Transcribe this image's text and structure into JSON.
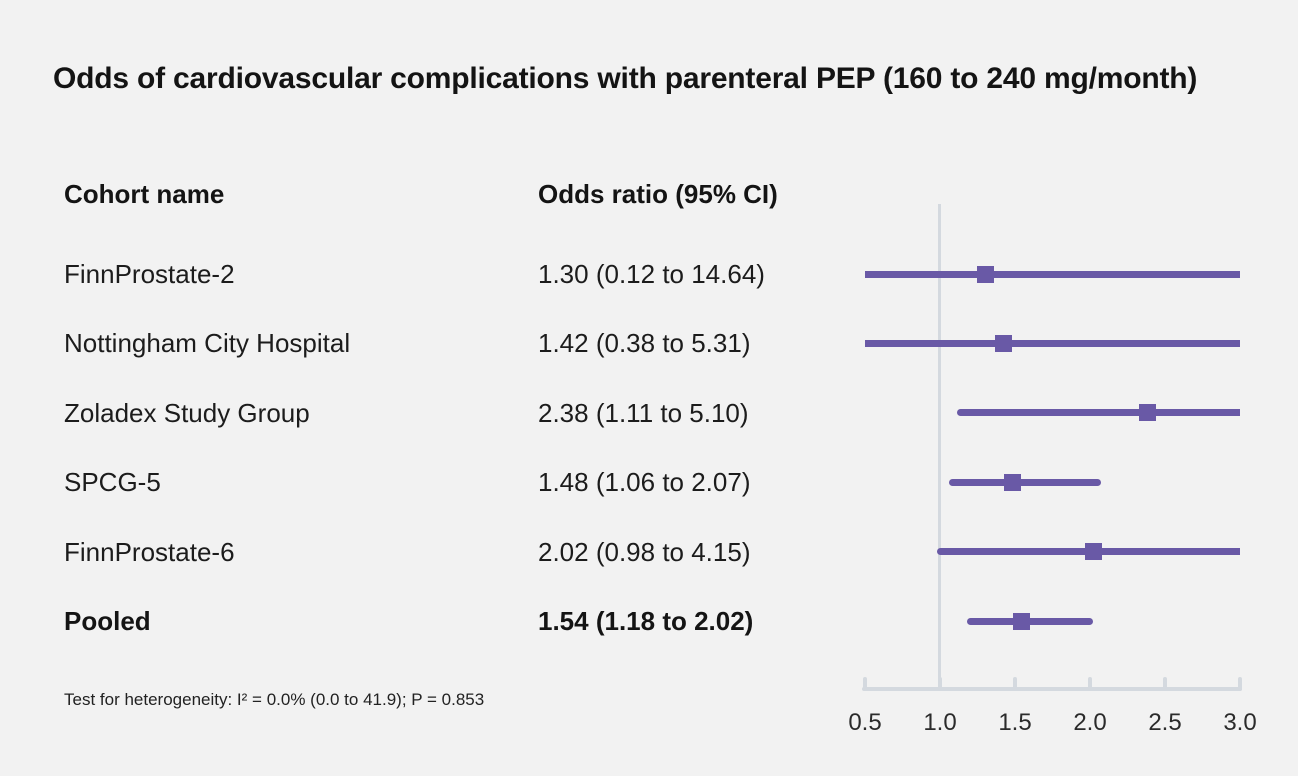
{
  "title": "Odds of cardiovascular complications with parenteral PEP (160 to 240 mg/month)",
  "table": {
    "cohort_header": "Cohort name",
    "or_header": "Odds ratio (95% CI)"
  },
  "footnote": "Test for heterogeneity: I² = 0.0% (0.0 to 41.9); P = 0.853",
  "colors": {
    "marker": "#6959a6",
    "axis_line": "#d4d9df",
    "background": "#f2f2f2",
    "text": "#1a1a1a"
  },
  "chart_data": {
    "type": "scatter",
    "chart_kind": "forest_plot",
    "title": "Odds of cardiovascular complications with parenteral PEP (160 to 240 mg/month)",
    "xlabel": "",
    "ylabel": "",
    "xlim": [
      0.5,
      3.0
    ],
    "reference_line": 1.0,
    "x_ticks": [
      "0.5",
      "1.0",
      "1.5",
      "2.0",
      "2.5",
      "3.0"
    ],
    "legend_position": "none",
    "grid": false,
    "rows": [
      {
        "label": "FinnProstate-2",
        "display": "1.30 (0.12 to 14.64)",
        "or": 1.3,
        "ci_low": 0.12,
        "ci_high": 14.64,
        "bold": false
      },
      {
        "label": "Nottingham City Hospital",
        "display": "1.42 (0.38 to 5.31)",
        "or": 1.42,
        "ci_low": 0.38,
        "ci_high": 5.31,
        "bold": false
      },
      {
        "label": "Zoladex Study Group",
        "display": "2.38 (1.11 to 5.10)",
        "or": 2.38,
        "ci_low": 1.11,
        "ci_high": 5.1,
        "bold": false
      },
      {
        "label": "SPCG-5",
        "display": "1.48 (1.06 to 2.07)",
        "or": 1.48,
        "ci_low": 1.06,
        "ci_high": 2.07,
        "bold": false
      },
      {
        "label": "FinnProstate-6",
        "display": "2.02 (0.98 to 4.15)",
        "or": 2.02,
        "ci_low": 0.98,
        "ci_high": 4.15,
        "bold": false
      },
      {
        "label": "Pooled",
        "display": "1.54 (1.18 to 2.02)",
        "or": 1.54,
        "ci_low": 1.18,
        "ci_high": 2.02,
        "bold": true
      }
    ]
  }
}
